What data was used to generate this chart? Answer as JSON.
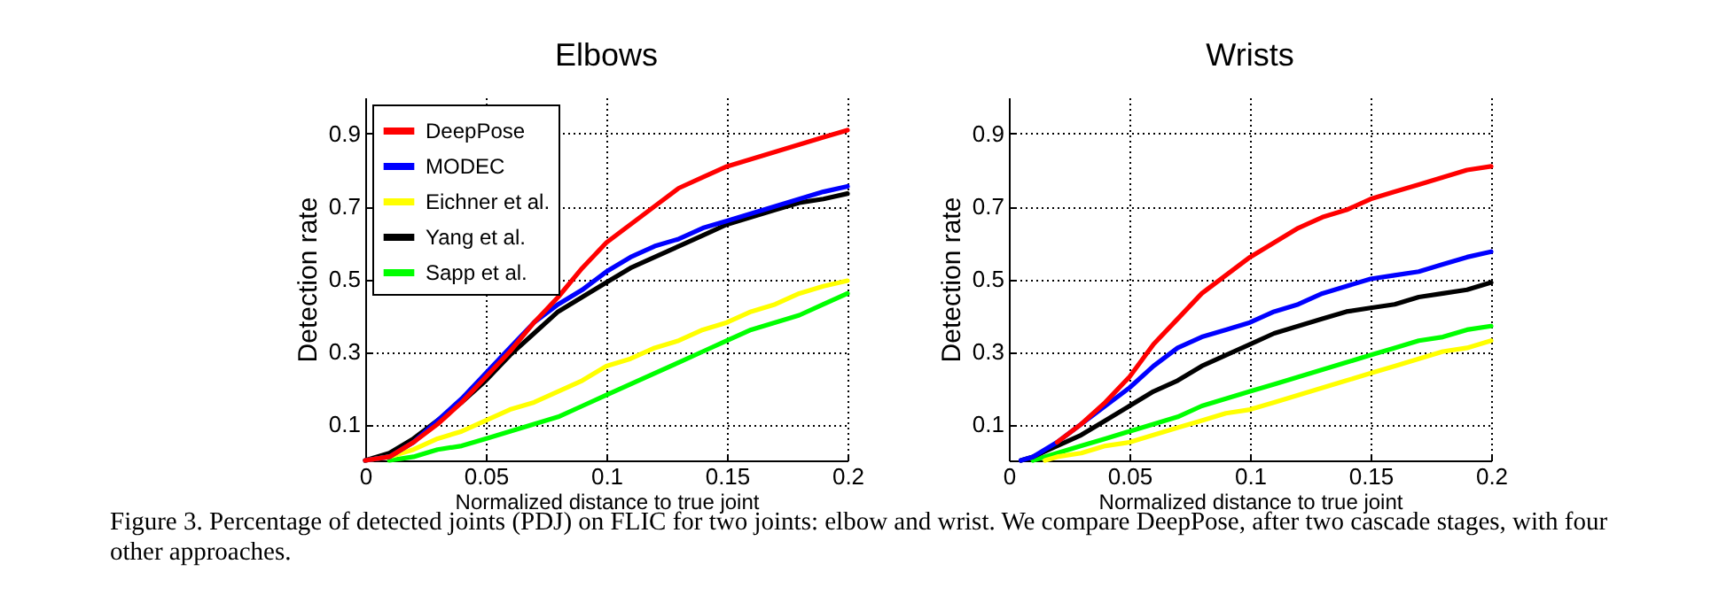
{
  "chart_data": [
    {
      "type": "line",
      "title": "Elbows",
      "xlabel": "Normalized distance to true joint",
      "ylabel": "Detection rate",
      "xlim": [
        0,
        0.2
      ],
      "ylim": [
        0,
        1
      ],
      "xticks": [
        0,
        0.05,
        0.1,
        0.15,
        0.2
      ],
      "yticks": [
        0.1,
        0.3,
        0.5,
        0.7,
        0.9
      ],
      "grid": true,
      "legend": "top left",
      "line_style": "solid",
      "annotations": [
        "Figure 3.  Percentage of detected joints (PDJ) on FLIC for two joints: elbow and wrist. We compare DeepPose, after two cascade stages, with four other approaches."
      ],
      "series": [
        {
          "name": "DeepPose",
          "color": "#ff0000",
          "x": [
            0,
            0.01,
            0.02,
            0.03,
            0.04,
            0.05,
            0.06,
            0.07,
            0.08,
            0.09,
            0.1,
            0.11,
            0.12,
            0.13,
            0.14,
            0.15,
            0.16,
            0.17,
            0.18,
            0.19,
            0.2
          ],
          "values": [
            0,
            0.01,
            0.05,
            0.1,
            0.16,
            0.23,
            0.3,
            0.38,
            0.45,
            0.53,
            0.6,
            0.65,
            0.7,
            0.75,
            0.78,
            0.81,
            0.83,
            0.85,
            0.87,
            0.89,
            0.91
          ]
        },
        {
          "name": "MODEC",
          "color": "#0000ff",
          "x": [
            0,
            0.01,
            0.02,
            0.03,
            0.04,
            0.05,
            0.06,
            0.07,
            0.08,
            0.09,
            0.1,
            0.11,
            0.12,
            0.13,
            0.14,
            0.15,
            0.16,
            0.17,
            0.18,
            0.19,
            0.2
          ],
          "values": [
            0,
            0.01,
            0.05,
            0.11,
            0.17,
            0.24,
            0.31,
            0.38,
            0.43,
            0.47,
            0.52,
            0.56,
            0.59,
            0.61,
            0.64,
            0.66,
            0.68,
            0.7,
            0.72,
            0.74,
            0.755
          ]
        },
        {
          "name": "Eichner et al.",
          "color": "#ffff00",
          "x": [
            0,
            0.01,
            0.02,
            0.03,
            0.04,
            0.05,
            0.06,
            0.07,
            0.08,
            0.09,
            0.1,
            0.11,
            0.12,
            0.13,
            0.14,
            0.15,
            0.16,
            0.17,
            0.18,
            0.19,
            0.2
          ],
          "values": [
            0,
            0.01,
            0.03,
            0.06,
            0.08,
            0.11,
            0.14,
            0.16,
            0.19,
            0.22,
            0.26,
            0.28,
            0.31,
            0.33,
            0.36,
            0.38,
            0.41,
            0.43,
            0.46,
            0.48,
            0.495
          ]
        },
        {
          "name": "Yang et al.",
          "color": "#000000",
          "x": [
            0,
            0.01,
            0.02,
            0.03,
            0.04,
            0.05,
            0.06,
            0.07,
            0.08,
            0.09,
            0.1,
            0.11,
            0.12,
            0.13,
            0.14,
            0.15,
            0.16,
            0.17,
            0.18,
            0.19,
            0.2
          ],
          "values": [
            0,
            0.02,
            0.06,
            0.11,
            0.16,
            0.22,
            0.29,
            0.35,
            0.41,
            0.45,
            0.49,
            0.53,
            0.56,
            0.59,
            0.62,
            0.65,
            0.67,
            0.69,
            0.71,
            0.72,
            0.735
          ]
        },
        {
          "name": "Sapp et al.",
          "color": "#00ff00",
          "x": [
            0.01,
            0.02,
            0.03,
            0.04,
            0.05,
            0.06,
            0.07,
            0.08,
            0.09,
            0.1,
            0.11,
            0.12,
            0.13,
            0.14,
            0.15,
            0.16,
            0.17,
            0.18,
            0.19,
            0.2
          ],
          "values": [
            0,
            0.01,
            0.03,
            0.04,
            0.06,
            0.08,
            0.1,
            0.12,
            0.15,
            0.18,
            0.21,
            0.24,
            0.27,
            0.3,
            0.33,
            0.36,
            0.38,
            0.4,
            0.43,
            0.46
          ]
        }
      ]
    },
    {
      "type": "line",
      "title": "Wrists",
      "xlabel": "Normalized distance to true joint",
      "ylabel": "Detection rate",
      "xlim": [
        0,
        0.2
      ],
      "ylim": [
        0,
        1
      ],
      "xticks": [
        0,
        0.05,
        0.1,
        0.15,
        0.2
      ],
      "yticks": [
        0.1,
        0.3,
        0.5,
        0.7,
        0.9
      ],
      "grid": true,
      "line_style": "solid",
      "series": [
        {
          "color": "#ff0000",
          "x": [
            0.02,
            0.03,
            0.04,
            0.05,
            0.06,
            0.07,
            0.08,
            0.09,
            0.1,
            0.11,
            0.12,
            0.13,
            0.14,
            0.15,
            0.16,
            0.17,
            0.18,
            0.19,
            0.2
          ],
          "values": [
            0.05,
            0.1,
            0.16,
            0.23,
            0.32,
            0.39,
            0.46,
            0.51,
            0.56,
            0.6,
            0.64,
            0.67,
            0.69,
            0.72,
            0.74,
            0.76,
            0.78,
            0.8,
            0.81
          ]
        },
        {
          "color": "#0000ff",
          "x": [
            0.005,
            0.01,
            0.02,
            0.03,
            0.04,
            0.05,
            0.06,
            0.07,
            0.08,
            0.09,
            0.1,
            0.11,
            0.12,
            0.13,
            0.14,
            0.15,
            0.16,
            0.17,
            0.18,
            0.19,
            0.2
          ],
          "values": [
            0,
            0.01,
            0.05,
            0.1,
            0.15,
            0.2,
            0.26,
            0.31,
            0.34,
            0.36,
            0.38,
            0.41,
            0.43,
            0.46,
            0.48,
            0.5,
            0.51,
            0.52,
            0.54,
            0.56,
            0.575
          ]
        },
        {
          "color": "#ffff00",
          "x": [
            0.015,
            0.02,
            0.03,
            0.04,
            0.05,
            0.06,
            0.07,
            0.08,
            0.09,
            0.1,
            0.11,
            0.12,
            0.13,
            0.14,
            0.15,
            0.16,
            0.17,
            0.18,
            0.19,
            0.2
          ],
          "values": [
            0,
            0.01,
            0.02,
            0.04,
            0.05,
            0.07,
            0.09,
            0.11,
            0.13,
            0.14,
            0.16,
            0.18,
            0.2,
            0.22,
            0.24,
            0.26,
            0.28,
            0.3,
            0.31,
            0.33
          ]
        },
        {
          "color": "#000000",
          "x": [
            0.005,
            0.01,
            0.02,
            0.03,
            0.04,
            0.05,
            0.06,
            0.07,
            0.08,
            0.09,
            0.1,
            0.11,
            0.12,
            0.13,
            0.14,
            0.15,
            0.16,
            0.17,
            0.18,
            0.19,
            0.2
          ],
          "values": [
            0,
            0.01,
            0.04,
            0.07,
            0.11,
            0.15,
            0.19,
            0.22,
            0.26,
            0.29,
            0.32,
            0.35,
            0.37,
            0.39,
            0.41,
            0.42,
            0.43,
            0.45,
            0.46,
            0.47,
            0.49
          ]
        },
        {
          "color": "#00ff00",
          "x": [
            0.01,
            0.02,
            0.03,
            0.04,
            0.05,
            0.06,
            0.07,
            0.08,
            0.09,
            0.1,
            0.11,
            0.12,
            0.13,
            0.14,
            0.15,
            0.16,
            0.17,
            0.18,
            0.19,
            0.2
          ],
          "values": [
            0,
            0.02,
            0.04,
            0.06,
            0.08,
            0.1,
            0.12,
            0.15,
            0.17,
            0.19,
            0.21,
            0.23,
            0.25,
            0.27,
            0.29,
            0.31,
            0.33,
            0.34,
            0.36,
            0.37
          ]
        }
      ]
    }
  ]
}
